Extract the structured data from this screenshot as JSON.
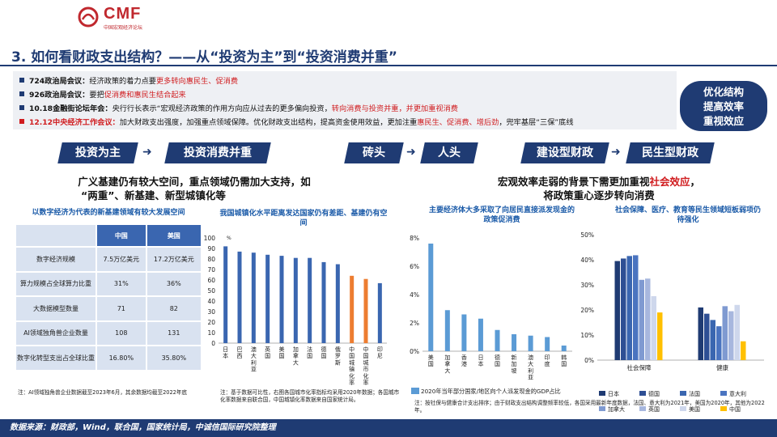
{
  "logo": {
    "name": "CMF",
    "sub": "中国宏观经济论坛"
  },
  "title": "3. 如何看财政支出结构？——从“投资为主”到“投资消费并重”",
  "notes": [
    {
      "parts": [
        {
          "t": "724政治局会议：",
          "b": true
        },
        {
          "t": "经济政策的着力点要"
        },
        {
          "t": "更多转向惠民生、促消费",
          "red": true
        }
      ]
    },
    {
      "parts": [
        {
          "t": "926政治局会议：",
          "b": true
        },
        {
          "t": "要把"
        },
        {
          "t": "促消费和惠民生结合起来",
          "red": true
        }
      ]
    },
    {
      "parts": [
        {
          "t": "10.18金融街论坛年会：",
          "b": true
        },
        {
          "t": "央行行长表示“宏观经济政策的作用方向应从过去的更多偏向投资，"
        },
        {
          "t": "转向消费与投资并重，并更加重视消费",
          "red": true
        }
      ]
    },
    {
      "parts": [
        {
          "t": "12.12中央经济工作会议：",
          "b": true,
          "red": true
        },
        {
          "t": "加大财政支出强度，加强重点领域保障。优化财政支出结构，提高资金使用效益，更加注重"
        },
        {
          "t": "惠民生、促消费、增后劲",
          "red": true
        },
        {
          "t": "，兜牢基层“三保”底线"
        }
      ]
    }
  ],
  "bubble": [
    "优化结构",
    "提高效率",
    "重视效应"
  ],
  "pills": {
    "p1": "投资为主",
    "p2": "投资消费并重",
    "p3": "砖头",
    "p4": "人头",
    "p5": "建设型财政",
    "p6": "民生型财政"
  },
  "headline_left": [
    "广义基建仍有较大空间，重点领域仍需加大支持，如",
    "“两重”、新基建、新型城镇化等"
  ],
  "headline_right_parts": [
    {
      "t": "宏观效率走弱的背景下需更加重视"
    },
    {
      "t": "社会效应",
      "red": true
    },
    {
      "t": "，"
    }
  ],
  "headline_right_line2": "将政策重心逐步转向消费",
  "table": {
    "title": "以数字经济为代表的新基建领域有较大发展空间",
    "headers": [
      "",
      "中国",
      "美国"
    ],
    "rows": [
      [
        "数字经济规模",
        "7.5万亿美元",
        "17.2万亿美元"
      ],
      [
        "算力规模占全球算力比重",
        "31%",
        "36%"
      ],
      [
        "大数据模型数量",
        "71",
        "82"
      ],
      [
        "AI领域独角兽企业数量",
        "108",
        "131"
      ],
      [
        "数字化转型支出占全球比重",
        "16.80%",
        "35.80%"
      ]
    ],
    "note": "注：AI领域独角兽企业数据截至2023年6月，其余数据均截至2022年底"
  },
  "note_urban": "注：基于数据可比性，右图各国城市化率指标均采用2020年数据；各国城市化率数据来自联合国，中国城镇化率数据来自国家统计局。",
  "note_transfer": "注：按社保与健康合计支出排序；由于财政支出结构调整频率较低，各国采用最新年度数据，法国、意大利为2021年，美国为2020年，其他为2022年。",
  "footer": "数据来源：财政部，Wind，联合国，国家统计局，中诚信国际研究院整理",
  "chart_data": [
    {
      "type": "bar",
      "title": "我国城镇化水平距离发达国家仍有差距、基建仍有空间",
      "ylabel": "%",
      "ylim": [
        0,
        100
      ],
      "yticks": [
        0,
        10,
        20,
        30,
        40,
        50,
        60,
        70,
        80,
        90,
        100
      ],
      "categories": [
        "日本",
        "巴西",
        "澳大利亚",
        "英国",
        "美国",
        "加拿大",
        "法国",
        "德国",
        "俄罗斯",
        "中国城镇化率",
        "中国城市化率",
        "印尼"
      ],
      "values": [
        92,
        87,
        86,
        84,
        83,
        81,
        81,
        77,
        75,
        64,
        61,
        57
      ],
      "colors": [
        "#3a66b0",
        "#3a66b0",
        "#3a66b0",
        "#3a66b0",
        "#3a66b0",
        "#3a66b0",
        "#3a66b0",
        "#3a66b0",
        "#3a66b0",
        "#ed7d31",
        "#ed7d31",
        "#3a66b0"
      ]
    },
    {
      "type": "bar",
      "title": "主要经济体大多采取了向居民直接派发现金的政策促消费",
      "ylim": [
        0,
        8
      ],
      "yticks": [
        "0%",
        "2%",
        "4%",
        "6%",
        "8%"
      ],
      "categories": [
        "美国",
        "加拿大",
        "香港",
        "日本",
        "德国",
        "新加坡",
        "澳大利亚",
        "印度",
        "韩国"
      ],
      "values": [
        7.6,
        2.9,
        2.6,
        2.3,
        1.5,
        1.2,
        1.1,
        1.0,
        0.4
      ],
      "legend": [
        "2020年当年部分国家/地区向个人派发现金的GDP占比"
      ],
      "color": "#5b9bd5"
    },
    {
      "type": "bar",
      "title": "社会保障、医疗、教育等民生领域短板弱项仍待强化",
      "ylim": [
        0,
        50
      ],
      "yticks": [
        "0%",
        "10%",
        "20%",
        "30%",
        "40%",
        "50%"
      ],
      "categories": [
        "社会保障",
        "健康"
      ],
      "series": [
        {
          "name": "日本",
          "color": "#1f3b73",
          "values": [
            39.5,
            21
          ]
        },
        {
          "name": "德国",
          "color": "#2e4f94",
          "values": [
            40.5,
            18.5
          ]
        },
        {
          "name": "法国",
          "color": "#3a66b0",
          "values": [
            41.5,
            16
          ]
        },
        {
          "name": "意大利",
          "color": "#4a74c0",
          "values": [
            41.8,
            13.5
          ]
        },
        {
          "name": "加拿大",
          "color": "#7f9ad1",
          "values": [
            32,
            21.5
          ]
        },
        {
          "name": "英国",
          "color": "#a7b7de",
          "values": [
            32.5,
            19.5
          ]
        },
        {
          "name": "美国",
          "color": "#ced7ec",
          "values": [
            25.5,
            22
          ]
        },
        {
          "name": "中国",
          "color": "#ffc000",
          "values": [
            19,
            7.5
          ]
        }
      ]
    }
  ]
}
